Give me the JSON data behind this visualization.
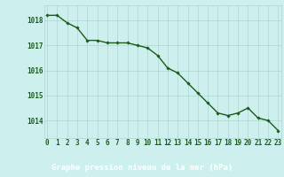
{
  "x": [
    0,
    1,
    2,
    3,
    4,
    5,
    6,
    7,
    8,
    9,
    10,
    11,
    12,
    13,
    14,
    15,
    16,
    17,
    18,
    19,
    20,
    21,
    22,
    23
  ],
  "y": [
    1018.2,
    1018.2,
    1017.9,
    1017.7,
    1017.2,
    1017.2,
    1017.1,
    1017.1,
    1017.1,
    1017.0,
    1016.9,
    1016.6,
    1016.1,
    1015.9,
    1015.5,
    1015.1,
    1014.7,
    1014.3,
    1014.2,
    1014.3,
    1014.5,
    1014.1,
    1014.0,
    1013.6
  ],
  "line_color": "#1a5c1a",
  "marker": "D",
  "marker_size": 1.8,
  "linewidth": 1.0,
  "bg_color": "#cdf0ee",
  "grid_color": "#aed4d0",
  "ylabel_ticks": [
    1014,
    1015,
    1016,
    1017,
    1018
  ],
  "ylim": [
    1013.3,
    1018.6
  ],
  "xlim": [
    -0.3,
    23.3
  ],
  "xlabel_label": "Graphe pression niveau de la mer (hPa)",
  "xlabel_fontsize": 6.5,
  "tick_fontsize": 5.5,
  "tick_color": "#1a5c1a",
  "label_color": "#1a5c1a",
  "footer_bg": "#2d6e2d",
  "footer_text_color": "#ffffff"
}
